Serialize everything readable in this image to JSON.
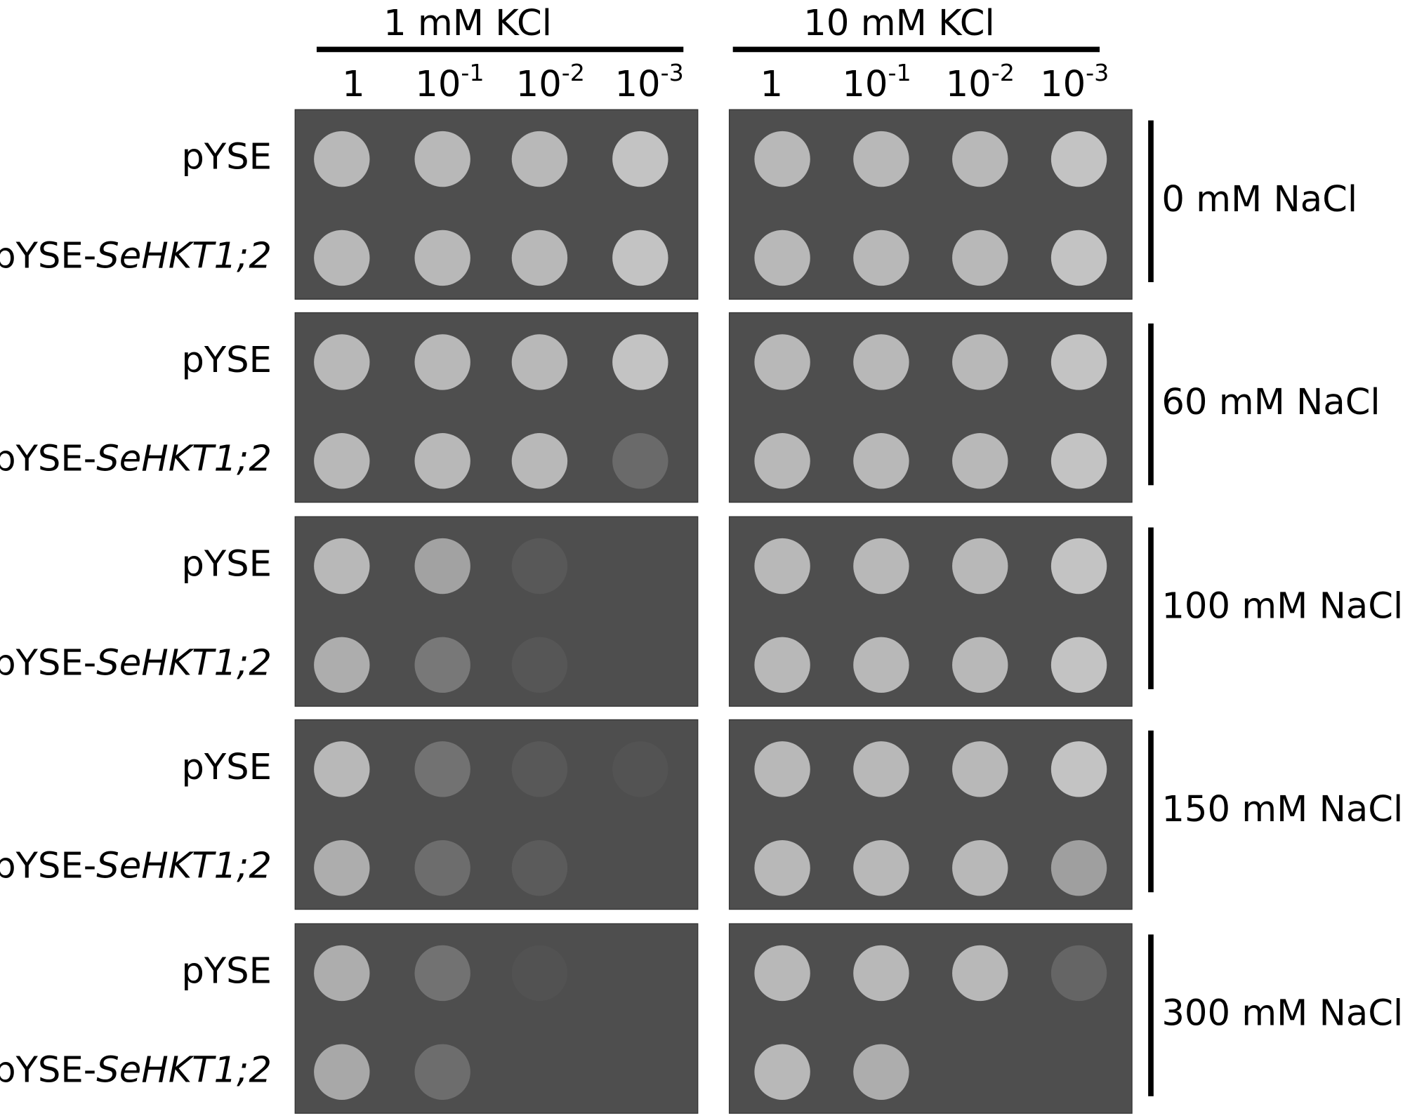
{
  "figure": {
    "column_headers": [
      "1 mM KCl",
      "10 mM KCl"
    ],
    "dilutions": [
      {
        "base": "1"
      },
      {
        "base": "10",
        "exp": "-1"
      },
      {
        "base": "10",
        "exp": "-2"
      },
      {
        "base": "10",
        "exp": "-3"
      }
    ],
    "strains": [
      {
        "text": "pYSE"
      },
      {
        "text": "pYSE-",
        "italic": "SeHKT1;2"
      }
    ],
    "conditions": [
      "0 mM NaCl",
      "60 mM NaCl",
      "100 mM NaCl",
      "150 mM NaCl",
      "300 mM NaCl"
    ]
  }
}
